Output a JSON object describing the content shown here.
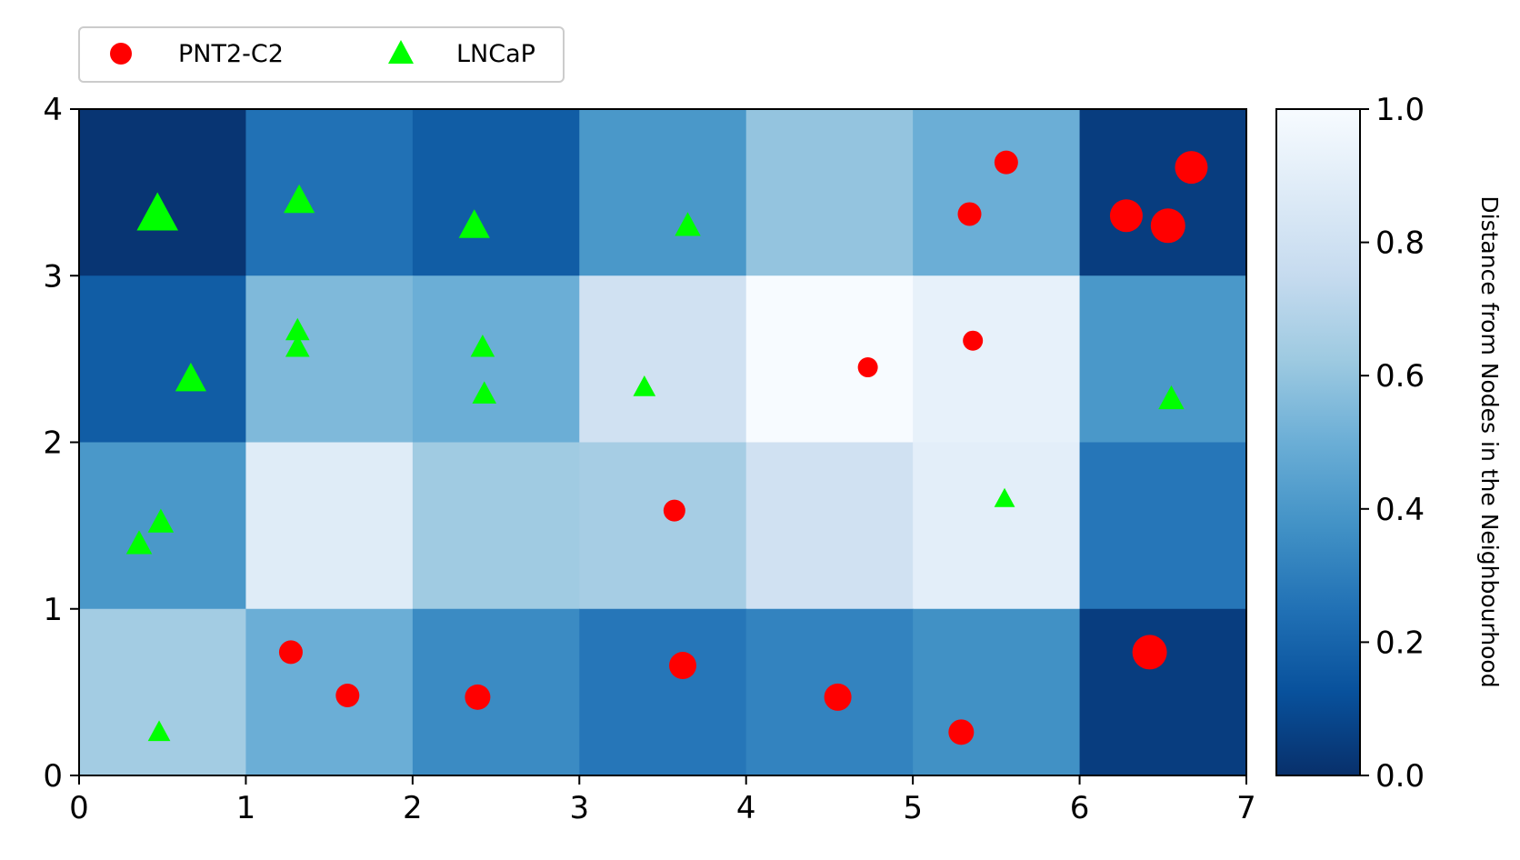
{
  "chart_data": {
    "type": "heatmap",
    "title": "",
    "xlabel": "",
    "ylabel": "",
    "xlim": [
      0,
      7
    ],
    "ylim": [
      0,
      4
    ],
    "x_ticks": [
      "0",
      "1",
      "2",
      "3",
      "4",
      "5",
      "6",
      "7"
    ],
    "y_ticks": [
      "0",
      "1",
      "2",
      "3",
      "4"
    ],
    "colormap": "Blues_r",
    "colorbar": {
      "label": "Distance from Nodes in the Neighbourhood",
      "range": [
        0,
        1
      ],
      "ticks": [
        "0.0",
        "0.2",
        "0.4",
        "0.6",
        "0.8",
        "1.0"
      ]
    },
    "grid": false,
    "legend_placement": "top-left-above",
    "cells_rows_top_to_bottom": [
      [
        0.02,
        0.25,
        0.17,
        0.4,
        0.6,
        0.5,
        0.05
      ],
      [
        0.17,
        0.55,
        0.5,
        0.8,
        1.0,
        0.92,
        0.4
      ],
      [
        0.4,
        0.88,
        0.63,
        0.65,
        0.8,
        0.9,
        0.27
      ],
      [
        0.64,
        0.5,
        0.35,
        0.27,
        0.32,
        0.37,
        0.05
      ]
    ],
    "series": [
      {
        "name": "PNT2-C2",
        "marker": "circle",
        "color": "#ff0000",
        "points": [
          {
            "x": 1.27,
            "y": 0.74,
            "s": 13
          },
          {
            "x": 1.61,
            "y": 0.48,
            "s": 13
          },
          {
            "x": 2.39,
            "y": 0.47,
            "s": 14
          },
          {
            "x": 3.62,
            "y": 0.66,
            "s": 15
          },
          {
            "x": 4.55,
            "y": 0.47,
            "s": 15
          },
          {
            "x": 5.29,
            "y": 0.26,
            "s": 14
          },
          {
            "x": 6.42,
            "y": 0.74,
            "s": 19
          },
          {
            "x": 3.57,
            "y": 1.59,
            "s": 12
          },
          {
            "x": 4.73,
            "y": 2.45,
            "s": 11
          },
          {
            "x": 5.36,
            "y": 2.61,
            "s": 11
          },
          {
            "x": 5.34,
            "y": 3.37,
            "s": 13
          },
          {
            "x": 5.56,
            "y": 3.68,
            "s": 13
          },
          {
            "x": 6.28,
            "y": 3.36,
            "s": 18
          },
          {
            "x": 6.53,
            "y": 3.3,
            "s": 19
          },
          {
            "x": 6.67,
            "y": 3.65,
            "s": 18
          }
        ]
      },
      {
        "name": "LNCaP",
        "marker": "triangle",
        "color": "#00ff00",
        "points": [
          {
            "x": 0.47,
            "y": 3.37,
            "s": 24
          },
          {
            "x": 1.32,
            "y": 3.45,
            "s": 18
          },
          {
            "x": 2.37,
            "y": 3.3,
            "s": 18
          },
          {
            "x": 3.65,
            "y": 3.3,
            "s": 15
          },
          {
            "x": 0.67,
            "y": 2.38,
            "s": 18
          },
          {
            "x": 1.31,
            "y": 2.67,
            "s": 14
          },
          {
            "x": 1.31,
            "y": 2.57,
            "s": 14
          },
          {
            "x": 2.42,
            "y": 2.57,
            "s": 14
          },
          {
            "x": 2.43,
            "y": 2.29,
            "s": 14
          },
          {
            "x": 3.39,
            "y": 2.33,
            "s": 13
          },
          {
            "x": 6.55,
            "y": 2.26,
            "s": 15
          },
          {
            "x": 0.36,
            "y": 1.39,
            "s": 15
          },
          {
            "x": 0.49,
            "y": 1.52,
            "s": 15
          },
          {
            "x": 5.55,
            "y": 1.66,
            "s": 12
          },
          {
            "x": 0.48,
            "y": 0.26,
            "s": 13
          }
        ]
      }
    ]
  }
}
